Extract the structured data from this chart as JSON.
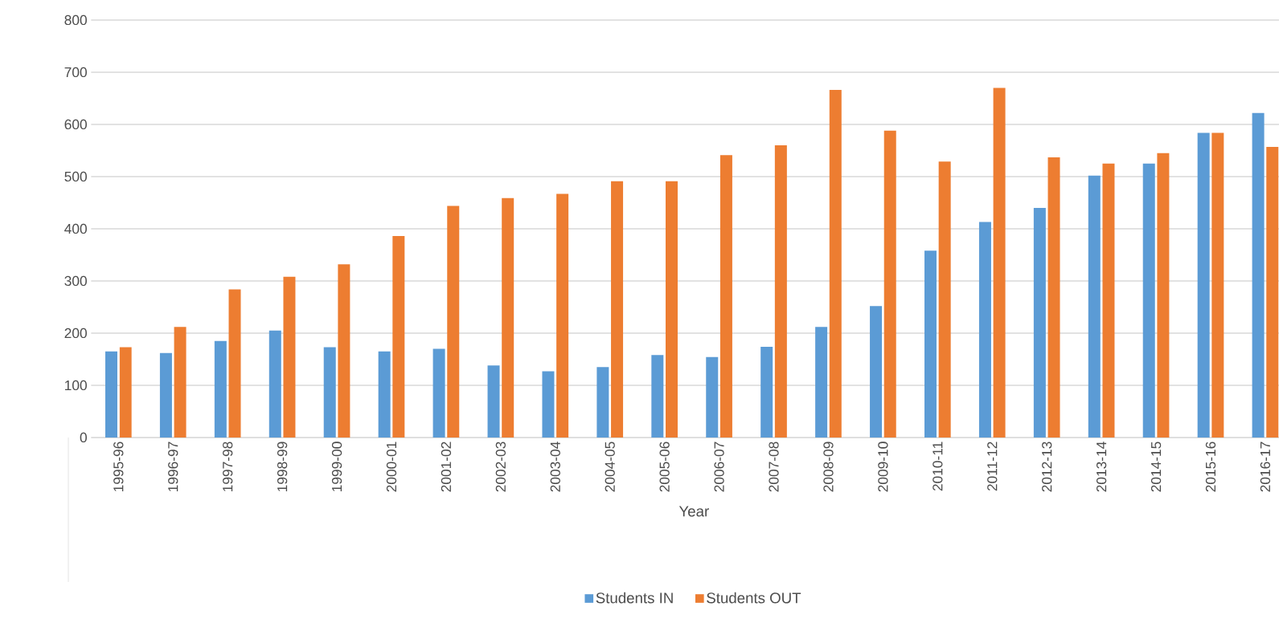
{
  "chart_data": {
    "type": "bar",
    "xlabel": "Year",
    "categories": [
      "1995-96",
      "1996-97",
      "1997-98",
      "1998-99",
      "1999-00",
      "2000-01",
      "2001-02",
      "2002-03",
      "2003-04",
      "2004-05",
      "2005-06",
      "2006-07",
      "2007-08",
      "2008-09",
      "2009-10",
      "2010-11",
      "2011-12",
      "2012-13",
      "2013-14",
      "2014-15",
      "2015-16",
      "2016-17"
    ],
    "series": [
      {
        "name": "Students IN",
        "color": "#5b9bd5",
        "values": [
          165,
          162,
          185,
          205,
          173,
          165,
          170,
          138,
          127,
          135,
          158,
          154,
          174,
          212,
          252,
          358,
          413,
          440,
          502,
          525,
          584,
          622
        ]
      },
      {
        "name": "Students OUT",
        "color": "#ed7d31",
        "values": [
          173,
          212,
          284,
          308,
          332,
          386,
          444,
          459,
          467,
          491,
          491,
          541,
          560,
          666,
          588,
          529,
          670,
          537,
          525,
          545,
          584,
          557
        ]
      }
    ],
    "ylim": [
      0,
      800
    ],
    "yticks": [
      0,
      100,
      200,
      300,
      400,
      500,
      600,
      700,
      800
    ],
    "grid": "y",
    "legend": "bottom"
  }
}
